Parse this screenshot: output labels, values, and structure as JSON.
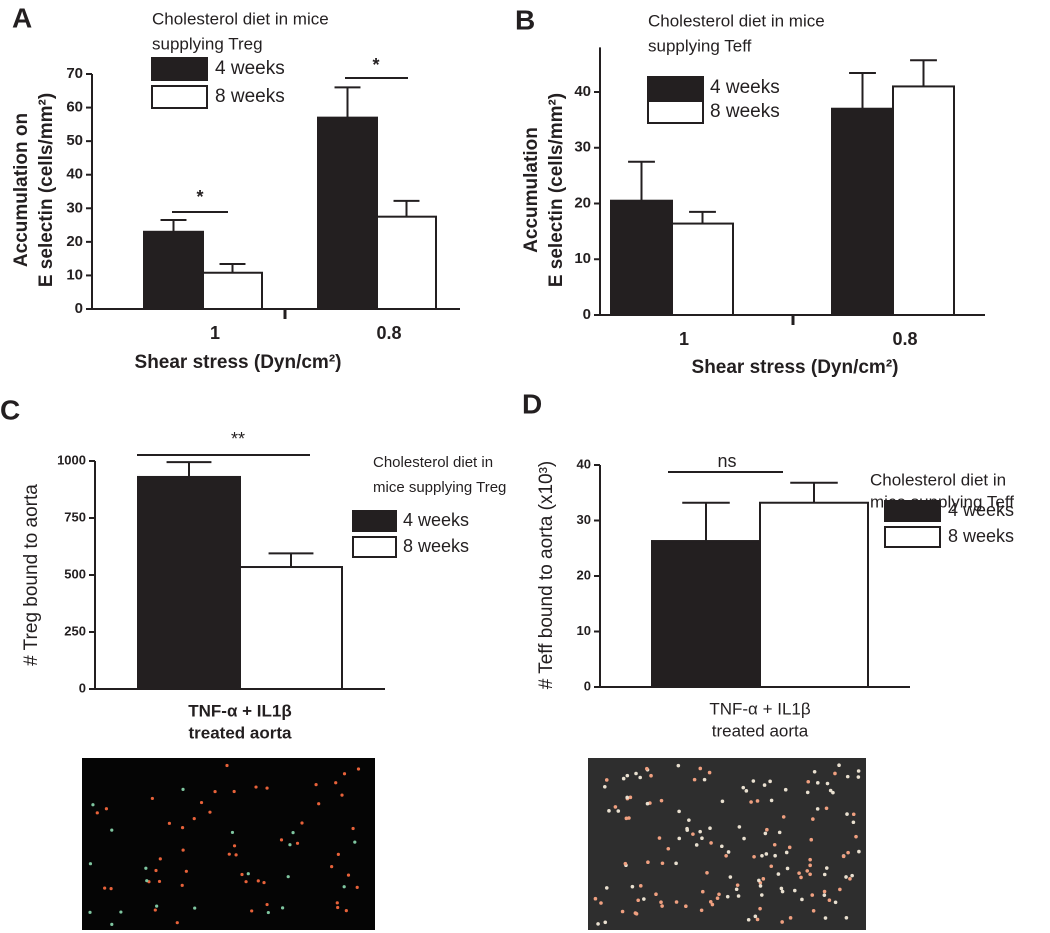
{
  "chart_data": [
    {
      "type": "bar",
      "panel": "A",
      "legend_title": [
        "Cholesterol diet in mice",
        "supplying Treg"
      ],
      "ylabel": [
        "Accumulation on",
        "E selectin (cells/mm²)"
      ],
      "xlabel": [
        "Shear stress (Dyn/cm²)"
      ],
      "categories": [
        "1",
        "0.8"
      ],
      "series": [
        {
          "name": "4 weeks",
          "color": "#231f20",
          "values": [
            23,
            57
          ],
          "errors": [
            3.5,
            9
          ]
        },
        {
          "name": "8 weeks",
          "color": "#ffffff",
          "values": [
            10.8,
            27.5
          ],
          "errors": [
            2.6,
            4.7
          ]
        }
      ],
      "ylim": [
        0,
        70
      ],
      "yticks": [
        0,
        10,
        20,
        30,
        40,
        50,
        60,
        70
      ],
      "annotations": [
        "*",
        "*"
      ]
    },
    {
      "type": "bar",
      "panel": "B",
      "legend_title": [
        "Cholesterol diet in mice",
        "supplying Teff"
      ],
      "ylabel": [
        "Accumulation",
        "E selectin (cells/mm²)"
      ],
      "xlabel": [
        "Shear stress (Dyn/cm²)"
      ],
      "categories": [
        "1",
        "0.8"
      ],
      "series": [
        {
          "name": "4 weeks",
          "color": "#231f20",
          "values": [
            20.5,
            37
          ],
          "errors": [
            7,
            6.4
          ]
        },
        {
          "name": "8 weeks",
          "color": "#ffffff",
          "values": [
            16.4,
            41
          ],
          "errors": [
            2.1,
            4.7
          ]
        }
      ],
      "ylim": [
        0,
        48
      ],
      "yticks": [
        0,
        10,
        20,
        30,
        40
      ],
      "annotations": []
    },
    {
      "type": "bar",
      "panel": "C",
      "legend_title": [
        "Cholesterol diet in",
        "mice supplying Treg"
      ],
      "ylabel": [
        "# Treg bound to aorta"
      ],
      "xlabel": [
        "TNF-α + IL1β",
        "treated aorta"
      ],
      "categories": [
        null
      ],
      "series": [
        {
          "name": "4 weeks",
          "color": "#231f20",
          "values": [
            930
          ],
          "errors": [
            65
          ]
        },
        {
          "name": "8 weeks",
          "color": "#ffffff",
          "values": [
            535
          ],
          "errors": [
            60
          ]
        }
      ],
      "ylim": [
        0,
        1000
      ],
      "yticks": [
        0,
        250,
        500,
        750,
        1000
      ],
      "annotations": [
        "**"
      ]
    },
    {
      "type": "bar",
      "panel": "D",
      "legend_title": [
        "Cholesterol diet in",
        "mice supplying Teff"
      ],
      "ylabel": [
        "# Teff bound to aorta (x10³)"
      ],
      "xlabel": [
        "TNF-α + IL1β",
        "treated aorta"
      ],
      "categories": [
        null
      ],
      "series": [
        {
          "name": "4 weeks",
          "color": "#231f20",
          "values": [
            26.3
          ],
          "errors": [
            6.9
          ]
        },
        {
          "name": "8 weeks",
          "color": "#ffffff",
          "values": [
            33.2
          ],
          "errors": [
            3.6
          ]
        }
      ],
      "ylim": [
        0,
        40
      ],
      "yticks": [
        0,
        10,
        20,
        30,
        40
      ],
      "annotations": [
        "ns"
      ]
    }
  ]
}
